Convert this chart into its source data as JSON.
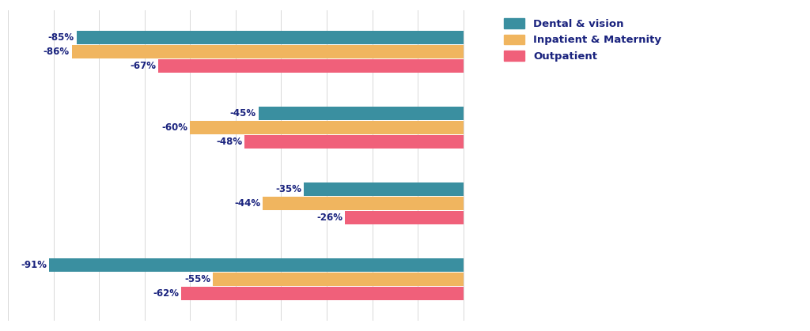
{
  "groups": [
    {
      "dental_vision": -85,
      "inpatient_maternity": -86,
      "outpatient": -67
    },
    {
      "dental_vision": -45,
      "inpatient_maternity": -60,
      "outpatient": -48
    },
    {
      "dental_vision": -35,
      "inpatient_maternity": -44,
      "outpatient": -26
    },
    {
      "dental_vision": -91,
      "inpatient_maternity": -55,
      "outpatient": -62
    }
  ],
  "color_dental": "#3a8fa0",
  "color_inpatient": "#f0b55f",
  "color_outpatient": "#f0607a",
  "label_dental": "Dental & vision",
  "label_inpatient": "Inpatient & Maternity",
  "label_outpatient": "Outpatient",
  "label_color": "#1a237e",
  "bar_height": 0.18,
  "xlim": [
    -100,
    5
  ],
  "background_color": "#ffffff",
  "grid_color": "#d8d8d8"
}
